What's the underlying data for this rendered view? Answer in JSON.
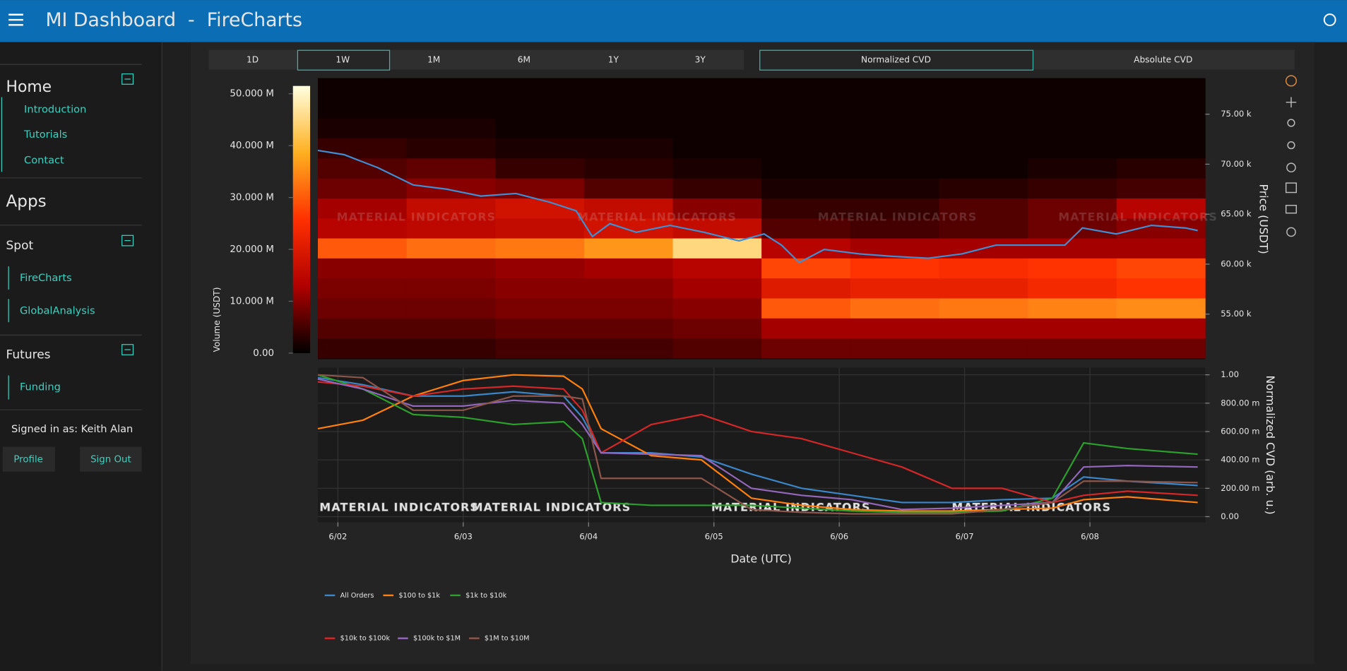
{
  "header": {
    "title": "MI Dashboard  -  FireCharts"
  },
  "sidebar": {
    "home": {
      "title": "Home",
      "links": [
        "Introduction",
        "Tutorials",
        "Contact"
      ]
    },
    "apps": {
      "title": "Apps"
    },
    "spot": {
      "title": "Spot",
      "links": [
        "FireCharts",
        "GlobalAnalysis"
      ]
    },
    "futures": {
      "title": "Futures",
      "links": [
        "Funding"
      ]
    },
    "user": {
      "signed_in": "Signed in as: Keith Alan",
      "buttons": [
        "Profile",
        "Sign Out"
      ]
    }
  },
  "toolbar": {
    "timeframes": [
      "1D",
      "1W",
      "1M",
      "6M",
      "1Y",
      "3Y"
    ],
    "modes": [
      "Normalized CVD",
      "Absolute CVD"
    ]
  },
  "chart_data": [
    {
      "type": "heatmap",
      "ylabel": "Price (USDT)",
      "xlim": [
        1.84,
        8.92
      ],
      "ylim": [
        50500,
        78600
      ],
      "yticks": [
        {
          "value": 55000,
          "label": "55.00 k"
        },
        {
          "value": 60000,
          "label": "60.00 k"
        },
        {
          "value": 65000,
          "label": "65.00 k"
        },
        {
          "value": 70000,
          "label": "70.00 k"
        },
        {
          "value": 75000,
          "label": "75.00 k"
        }
      ],
      "x_bins": [
        1.84,
        2.548,
        3.256,
        3.964,
        4.672,
        5.38,
        6.088,
        6.796,
        7.504,
        8.212,
        8.92
      ],
      "y_bins": [
        50600,
        52600,
        54600,
        56600,
        58600,
        60600,
        62600,
        64600,
        66600,
        68600,
        70600,
        72600,
        74600,
        76600,
        78600
      ],
      "z": [
        [
          4000000,
          4000000,
          5000000,
          5000000,
          6000000,
          8000000,
          8000000,
          8000000,
          8000000,
          8000000
        ],
        [
          6000000,
          6000000,
          7000000,
          7000000,
          8000000,
          12000000,
          12000000,
          12000000,
          12000000,
          12000000
        ],
        [
          8000000,
          8000000,
          9000000,
          9000000,
          10000000,
          30000000,
          32000000,
          33000000,
          34000000,
          35000000
        ],
        [
          9000000,
          9000000,
          10000000,
          10000000,
          12000000,
          20000000,
          22000000,
          22000000,
          24000000,
          26000000
        ],
        [
          10000000,
          10000000,
          11000000,
          12000000,
          14000000,
          28000000,
          26000000,
          25000000,
          26000000,
          28000000
        ],
        [
          30000000,
          32000000,
          33000000,
          36000000,
          45000000,
          14000000,
          12000000,
          12000000,
          12000000,
          12000000
        ],
        [
          14000000,
          15000000,
          16000000,
          18000000,
          16000000,
          6000000,
          5000000,
          6000000,
          8000000,
          10000000
        ],
        [
          12000000,
          16000000,
          18000000,
          16000000,
          10000000,
          4000000,
          4000000,
          6000000,
          8000000,
          14000000
        ],
        [
          8000000,
          10000000,
          9000000,
          6000000,
          4000000,
          2000000,
          2000000,
          3000000,
          4000000,
          5000000
        ],
        [
          6000000,
          7000000,
          4000000,
          3000000,
          2000000,
          1000000,
          1000000,
          1000000,
          2000000,
          3000000
        ],
        [
          4000000,
          3000000,
          2000000,
          2000000,
          1000000,
          1000000,
          1000000,
          1000000,
          1000000,
          1000000
        ],
        [
          2000000,
          2000000,
          1000000,
          1000000,
          1000000,
          1000000,
          1000000,
          1000000,
          1000000,
          1000000
        ],
        [
          1000000,
          1000000,
          1000000,
          1000000,
          1000000,
          1000000,
          1000000,
          1000000,
          1000000,
          1000000
        ],
        [
          1000000,
          1000000,
          1000000,
          1000000,
          1000000,
          1000000,
          1000000,
          1000000,
          1000000,
          1000000
        ]
      ],
      "colorscale": [
        "#000000",
        "#b00000",
        "#ff3000",
        "#ffb020",
        "#ffffe0"
      ],
      "colorbar": {
        "label": "Volume (USDT)",
        "lim": [
          0,
          51500000
        ],
        "ticks": [
          {
            "value": 0,
            "label": "0.00"
          },
          {
            "value": 10000000,
            "label": "10.000 M"
          },
          {
            "value": 20000000,
            "label": "20.000 M"
          },
          {
            "value": 30000000,
            "label": "30.000 M"
          },
          {
            "value": 40000000,
            "label": "40.000 M"
          },
          {
            "value": 50000000,
            "label": "50.000 M"
          }
        ]
      },
      "price_line": {
        "color": "#3d8fd6",
        "x": [
          1.84,
          2.05,
          2.32,
          2.6,
          2.87,
          3.14,
          3.42,
          3.69,
          3.9,
          4.03,
          4.17,
          4.38,
          4.65,
          4.92,
          5.2,
          5.4,
          5.54,
          5.68,
          5.88,
          6.16,
          6.43,
          6.71,
          6.98,
          7.25,
          7.53,
          7.8,
          7.94,
          8.21,
          8.49,
          8.76,
          8.86
        ],
        "values": [
          71380,
          70950,
          69650,
          67930,
          67500,
          66810,
          67070,
          66200,
          65340,
          62760,
          64050,
          63190,
          63880,
          63190,
          62330,
          63020,
          61900,
          60170,
          61470,
          61030,
          60780,
          60600,
          61030,
          61900,
          61900,
          61900,
          63620,
          63020,
          63880,
          63620,
          63360
        ]
      },
      "watermark": "MATERIAL INDICATORS"
    },
    {
      "type": "line",
      "xlabel": "Date (UTC)",
      "ylabel": "Normalized CVD (arb. u.)",
      "xlim": [
        1.84,
        8.92
      ],
      "ylim": [
        -0.04,
        1.05
      ],
      "xticks": [
        {
          "value": 2,
          "label": "6/02"
        },
        {
          "value": 3,
          "label": "6/03"
        },
        {
          "value": 4,
          "label": "6/04"
        },
        {
          "value": 5,
          "label": "6/05"
        },
        {
          "value": 6,
          "label": "6/06"
        },
        {
          "value": 7,
          "label": "6/07"
        },
        {
          "value": 8,
          "label": "6/08"
        }
      ],
      "yticks": [
        {
          "value": 0,
          "label": "0.00"
        },
        {
          "value": 0.2,
          "label": "200.00 m"
        },
        {
          "value": 0.4,
          "label": "400.00 m"
        },
        {
          "value": 0.6,
          "label": "600.00 m"
        },
        {
          "value": 0.8,
          "label": "800.00 m"
        },
        {
          "value": 1,
          "label": "1.00"
        }
      ],
      "grid": true,
      "x": [
        1.84,
        2.2,
        2.6,
        3.0,
        3.4,
        3.8,
        3.95,
        4.1,
        4.5,
        4.9,
        5.3,
        5.7,
        6.1,
        6.5,
        6.9,
        7.3,
        7.7,
        7.95,
        8.3,
        8.86
      ],
      "series": [
        {
          "name": "All Orders",
          "color": "#3a86c8",
          "values": [
            0.98,
            0.93,
            0.85,
            0.85,
            0.88,
            0.85,
            0.7,
            0.45,
            0.45,
            0.42,
            0.3,
            0.2,
            0.15,
            0.1,
            0.1,
            0.12,
            0.13,
            0.28,
            0.25,
            0.22
          ]
        },
        {
          "name": "$100 to $1k",
          "color": "#ff7f0e",
          "values": [
            0.62,
            0.68,
            0.85,
            0.96,
            1.0,
            0.99,
            0.9,
            0.62,
            0.43,
            0.4,
            0.13,
            0.08,
            0.05,
            0.04,
            0.04,
            0.05,
            0.06,
            0.12,
            0.14,
            0.1
          ]
        },
        {
          "name": "$1k to $10k",
          "color": "#2ca02c",
          "values": [
            1.0,
            0.9,
            0.72,
            0.7,
            0.65,
            0.67,
            0.55,
            0.1,
            0.08,
            0.08,
            0.08,
            0.06,
            0.04,
            0.03,
            0.03,
            0.04,
            0.13,
            0.52,
            0.48,
            0.44
          ]
        },
        {
          "name": "$10k to $100k",
          "color": "#d62728",
          "values": [
            0.95,
            0.92,
            0.85,
            0.9,
            0.92,
            0.9,
            0.75,
            0.45,
            0.65,
            0.72,
            0.6,
            0.55,
            0.45,
            0.35,
            0.2,
            0.2,
            0.1,
            0.15,
            0.18,
            0.15
          ]
        },
        {
          "name": "$100k to $1M",
          "color": "#9467bd",
          "values": [
            0.97,
            0.9,
            0.78,
            0.78,
            0.82,
            0.8,
            0.65,
            0.45,
            0.44,
            0.43,
            0.2,
            0.15,
            0.12,
            0.05,
            0.06,
            0.08,
            0.1,
            0.35,
            0.36,
            0.35
          ]
        },
        {
          "name": "$1M to $10M",
          "color": "#8c564b",
          "values": [
            1.0,
            0.98,
            0.75,
            0.75,
            0.85,
            0.85,
            0.83,
            0.27,
            0.27,
            0.27,
            0.05,
            0.03,
            0.02,
            0.02,
            0.02,
            0.05,
            0.1,
            0.25,
            0.25,
            0.24
          ]
        }
      ],
      "watermark": "MATERIAL INDICATORS"
    }
  ]
}
